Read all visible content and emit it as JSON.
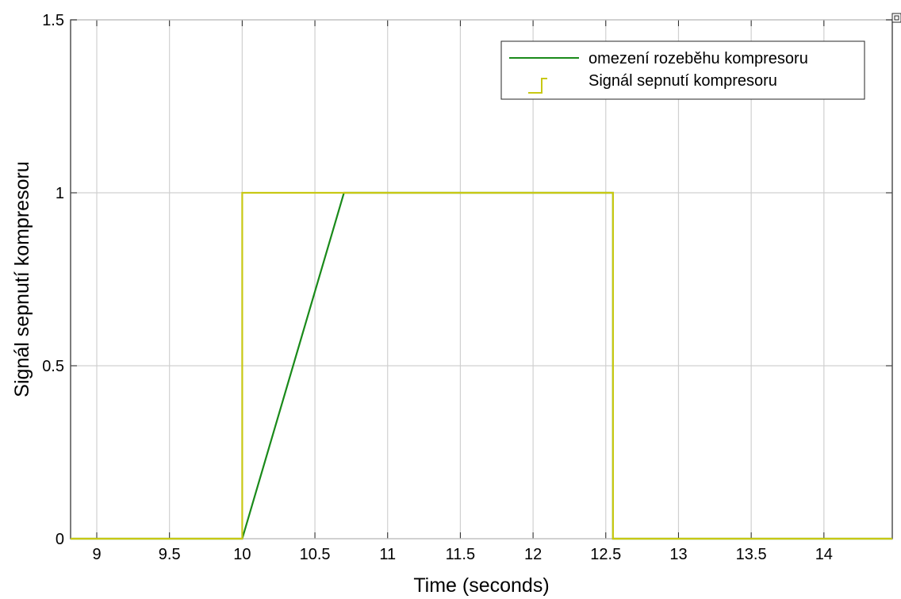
{
  "chart_data": {
    "type": "line",
    "title": "",
    "xlabel": "Time (seconds)",
    "ylabel": "Signál sepnutí kompresoru",
    "xlim": [
      8.82,
      14.47
    ],
    "ylim": [
      0,
      1.5
    ],
    "xticks": [
      9,
      9.5,
      10,
      10.5,
      11,
      11.5,
      12,
      12.5,
      13,
      13.5,
      14
    ],
    "xtick_labels": [
      "9",
      "9.5",
      "10",
      "10.5",
      "11",
      "11.5",
      "12",
      "12.5",
      "13",
      "13.5",
      "14"
    ],
    "yticks": [
      0,
      0.5,
      1,
      1.5
    ],
    "ytick_labels": [
      "0",
      "0.5",
      "1",
      "1.5"
    ],
    "grid": true,
    "legend_position": "top-right",
    "series": [
      {
        "name": "omezení rozeběhu kompresoru",
        "color": "#1a8a1a",
        "style": "line",
        "x": [
          8.82,
          10.0,
          10.7,
          12.55,
          12.55,
          14.47
        ],
        "y": [
          0,
          0,
          1,
          1,
          0,
          0
        ]
      },
      {
        "name": "Signál sepnutí kompresoru",
        "color": "#c8c814",
        "style": "step",
        "x": [
          8.82,
          10.0,
          10.0,
          12.55,
          12.55,
          14.47
        ],
        "y": [
          0,
          0,
          1,
          1,
          0,
          0
        ]
      }
    ]
  }
}
